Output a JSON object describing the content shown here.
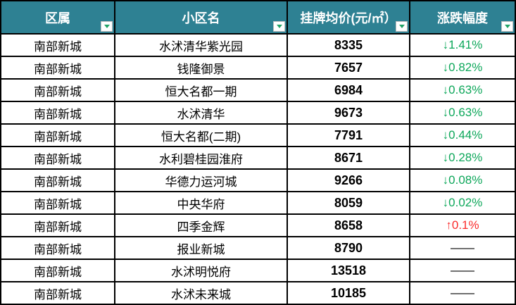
{
  "table": {
    "columns": [
      {
        "label": "区属"
      },
      {
        "label": "小区名"
      },
      {
        "label": "挂牌均价(元/㎡）"
      },
      {
        "label": "涨跌幅度"
      }
    ],
    "rows": [
      {
        "district": "南部新城",
        "name": "水沭清华紫光园",
        "price": "8335",
        "change": "↓1.41%",
        "direction": "down"
      },
      {
        "district": "南部新城",
        "name": "钱隆御景",
        "price": "7657",
        "change": "↓0.82%",
        "direction": "down"
      },
      {
        "district": "南部新城",
        "name": "恒大名都一期",
        "price": "6984",
        "change": "↓0.63%",
        "direction": "down"
      },
      {
        "district": "南部新城",
        "name": "水沭清华",
        "price": "9673",
        "change": "↓0.63%",
        "direction": "down"
      },
      {
        "district": "南部新城",
        "name": "恒大名都(二期)",
        "price": "7791",
        "change": "↓0.44%",
        "direction": "down"
      },
      {
        "district": "南部新城",
        "name": "水利碧桂园淮府",
        "price": "8671",
        "change": "↓0.28%",
        "direction": "down"
      },
      {
        "district": "南部新城",
        "name": "华德力运河城",
        "price": "9266",
        "change": "↓0.08%",
        "direction": "down"
      },
      {
        "district": "南部新城",
        "name": "中央华府",
        "price": "8059",
        "change": "↓0.02%",
        "direction": "down"
      },
      {
        "district": "南部新城",
        "name": "四季金辉",
        "price": "8658",
        "change": "↑0.1%",
        "direction": "up"
      },
      {
        "district": "南部新城",
        "name": "报业新城",
        "price": "8790",
        "change": "——",
        "direction": "none"
      },
      {
        "district": "南部新城",
        "name": "水沭明悦府",
        "price": "13518",
        "change": "——",
        "direction": "none"
      },
      {
        "district": "南部新城",
        "name": "水沭未来城",
        "price": "10185",
        "change": "——",
        "direction": "none"
      }
    ]
  },
  "colors": {
    "header_bg": "#2E8193",
    "down_green": "#0DA75A",
    "up_red": "#FA2B2B",
    "filter_arrow_green": "#21A366",
    "border_black": "#000000"
  }
}
